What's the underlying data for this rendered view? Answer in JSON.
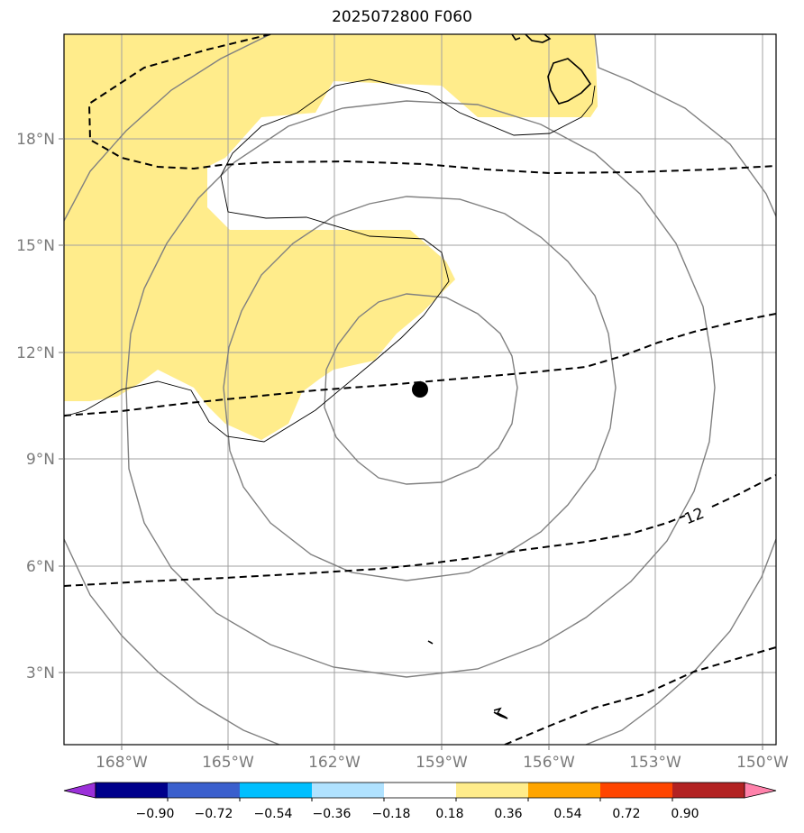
{
  "map": {
    "title": "2025072800 F060",
    "lon_labels": [
      "168°W",
      "165°W",
      "162°W",
      "159°W",
      "156°W",
      "153°W",
      "150°W"
    ],
    "lat_labels": [
      "18°N",
      "15°N",
      "12°N",
      "9°N",
      "6°N",
      "3°N"
    ],
    "contour_label": "12",
    "colorbar": {
      "tick_labels": [
        "−0.90",
        "−0.72",
        "−0.54",
        "−0.36",
        "−0.18",
        "0.18",
        "0.36",
        "0.54",
        "0.72",
        "0.90"
      ],
      "colors": [
        "#9b30d9",
        "#00008b",
        "#3a5fcd",
        "#00bfff",
        "#b0e2ff",
        "#ffffff",
        "#ffec8b",
        "#ffa500",
        "#ff4500",
        "#b22222",
        "#ff82ab"
      ]
    },
    "shading_color": "#ffec8b",
    "storm_center_marker": "filled-circle"
  }
}
